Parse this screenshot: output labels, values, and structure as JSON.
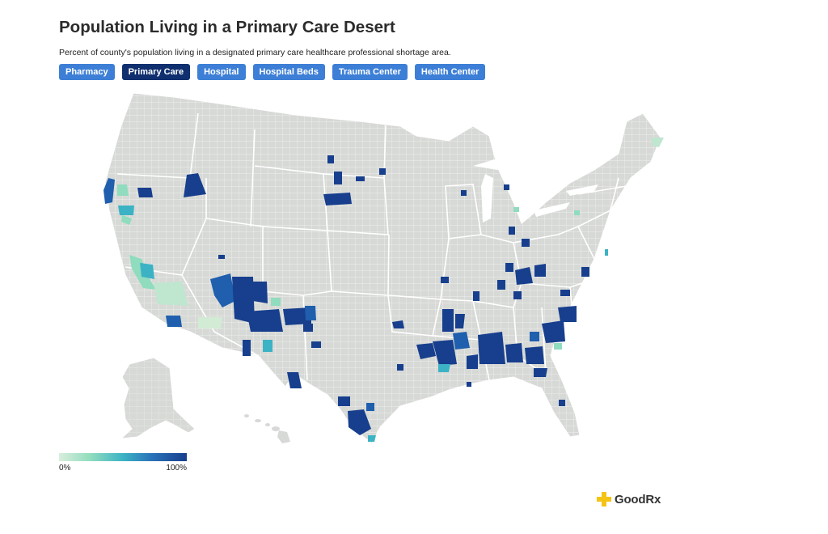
{
  "header": {
    "title": "Population Living in a Primary Care Desert",
    "subtitle": "Percent of county's population living in a designated primary care healthcare professional shortage area."
  },
  "tabs": [
    {
      "label": "Pharmacy",
      "active": false
    },
    {
      "label": "Primary Care",
      "active": true
    },
    {
      "label": "Hospital",
      "active": false
    },
    {
      "label": "Hospital Beds",
      "active": false
    },
    {
      "label": "Trauma Center",
      "active": false
    },
    {
      "label": "Health Center",
      "active": false
    }
  ],
  "legend": {
    "min_label": "0%",
    "max_label": "100%",
    "colors": [
      "#d9eedc",
      "#8fdcbe",
      "#3cb3c4",
      "#2a74b9",
      "#173f8d"
    ]
  },
  "colors": {
    "no_data_fill": "#d7d9d6",
    "county_border": "#ffffff",
    "tab_active": "#0f2f6f",
    "tab_inactive": "#3d7fd6",
    "brand_yellow": "#f4c415"
  },
  "brand": {
    "name": "GoodRx",
    "icon": "plus-logo-icon"
  }
}
